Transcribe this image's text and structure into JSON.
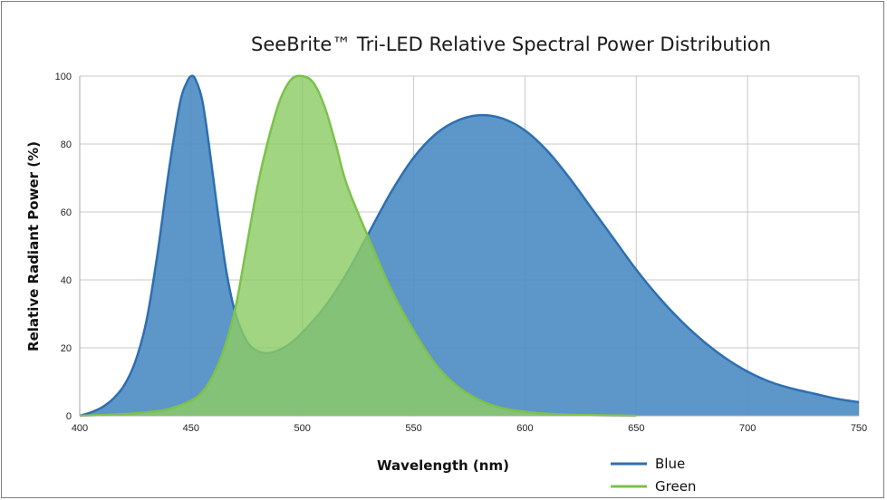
{
  "chart_data": {
    "type": "area",
    "title": "SeeBrite™ Tri-LED Relative Spectral Power Distribution",
    "xlabel": "Wavelength (nm)",
    "ylabel": "Relative Radiant Power (%)",
    "xlim": [
      400,
      750
    ],
    "ylim": [
      0,
      100
    ],
    "x_ticks": [
      400,
      450,
      500,
      550,
      600,
      650,
      700,
      750
    ],
    "y_ticks": [
      0,
      20,
      40,
      60,
      80,
      100
    ],
    "grid": true,
    "legend_position": "bottom-right",
    "series": [
      {
        "name": "Blue",
        "color": "#4f8dc4",
        "line_color": "#2e6fb0",
        "x": [
          400,
          405,
          410,
          415,
          420,
          425,
          430,
          435,
          440,
          445,
          448,
          450,
          452,
          455,
          458,
          462,
          466,
          470,
          475,
          480,
          485,
          490,
          495,
          500,
          510,
          520,
          530,
          540,
          550,
          560,
          570,
          580,
          590,
          600,
          610,
          620,
          630,
          640,
          650,
          660,
          670,
          680,
          690,
          700,
          710,
          720,
          730,
          740,
          750
        ],
        "y": [
          0,
          1,
          2.5,
          5,
          9,
          16,
          28,
          48,
          72,
          92,
          98,
          100,
          99,
          93,
          80,
          60,
          42,
          30,
          22,
          19,
          18.5,
          19.5,
          21.5,
          24.5,
          32,
          42,
          54,
          66,
          76,
          83,
          87,
          88.5,
          87.5,
          84,
          78,
          70,
          61,
          52,
          43,
          35,
          28,
          22,
          17,
          13,
          10,
          8,
          6.5,
          5,
          4
        ]
      },
      {
        "name": "Green",
        "color": "#8ccc66",
        "line_color": "#7cc24a",
        "x": [
          400,
          420,
          430,
          440,
          450,
          455,
          460,
          465,
          470,
          475,
          480,
          485,
          490,
          495,
          500,
          505,
          510,
          515,
          520,
          530,
          540,
          550,
          560,
          570,
          580,
          590,
          600,
          610,
          620,
          630,
          640,
          650
        ],
        "y": [
          0,
          0.5,
          1,
          2,
          4.5,
          7,
          12,
          20,
          32,
          50,
          68,
          82,
          93,
          99,
          100,
          98,
          91,
          80,
          68,
          52,
          37,
          25,
          15,
          8.5,
          4.5,
          2.2,
          1.2,
          0.6,
          0.3,
          0.2,
          0.1,
          0
        ]
      }
    ]
  }
}
